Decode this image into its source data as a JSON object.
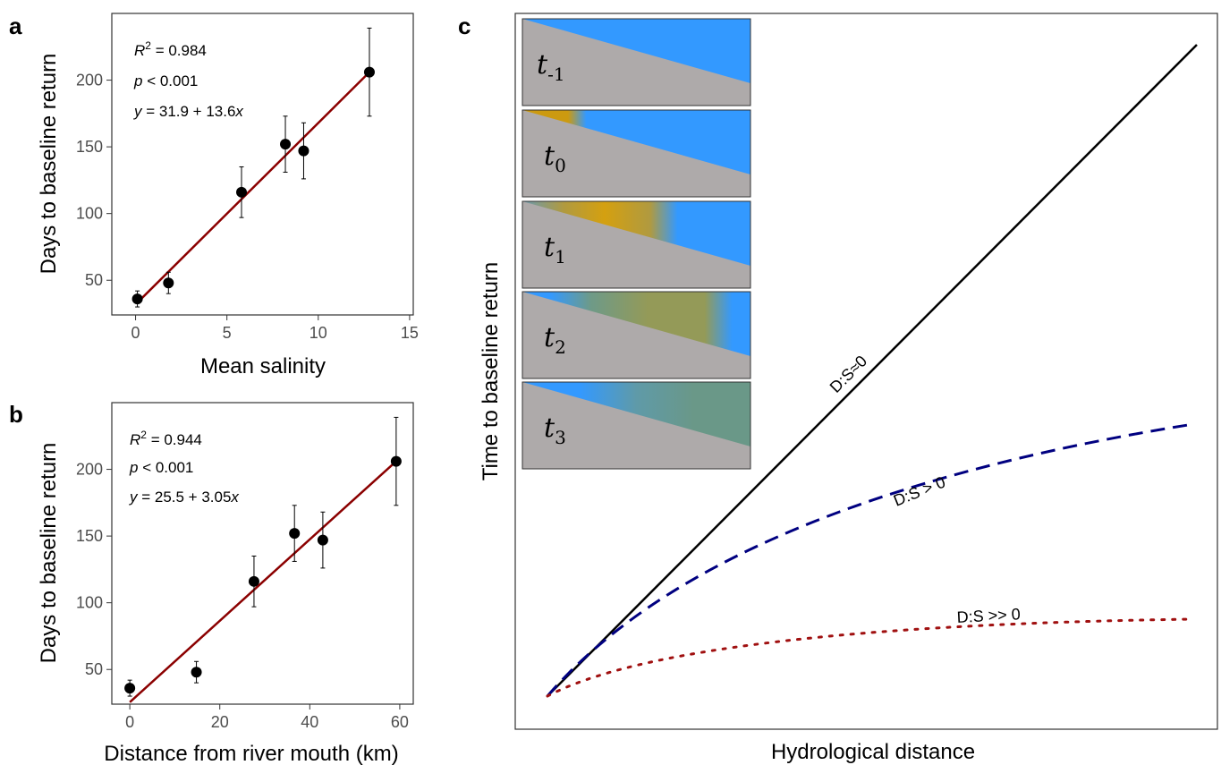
{
  "chart_data": [
    {
      "panel": "a",
      "type": "scatter",
      "xlabel": "Mean salinity",
      "ylabel": "Days to baseline return",
      "xlim": [
        -1.3,
        15.2
      ],
      "ylim": [
        24,
        250
      ],
      "xticks": [
        0,
        5,
        10,
        15
      ],
      "yticks": [
        50,
        100,
        150,
        200
      ],
      "points": [
        {
          "x": 0.1,
          "y": 36,
          "err": 6
        },
        {
          "x": 1.8,
          "y": 48,
          "err": 8
        },
        {
          "x": 5.8,
          "y": 116,
          "err": 19
        },
        {
          "x": 8.2,
          "y": 152,
          "err": 21
        },
        {
          "x": 9.2,
          "y": 147,
          "err": 21
        },
        {
          "x": 12.8,
          "y": 206,
          "err": 33
        }
      ],
      "fit": {
        "intercept": 31.9,
        "slope": 13.6,
        "x_range": [
          0.1,
          12.8
        ],
        "color": "#8b0000"
      },
      "annotations": {
        "r2_label": "R",
        "r2_sup": "2",
        "r2_value": " = 0.984",
        "p_label": "p",
        "p_value": " < 0.001",
        "eq_y": "y",
        "eq_mid": " = 31.9 + 13.6",
        "eq_x": "x"
      }
    },
    {
      "panel": "b",
      "type": "scatter",
      "xlabel": "Distance from river mouth (km)",
      "ylabel": "Days to baseline return",
      "xlim": [
        -4,
        63
      ],
      "ylim": [
        24,
        250
      ],
      "xticks": [
        0,
        20,
        40,
        60
      ],
      "yticks": [
        50,
        100,
        150,
        200
      ],
      "points": [
        {
          "x": 0,
          "y": 36,
          "err": 6
        },
        {
          "x": 14.8,
          "y": 48,
          "err": 8
        },
        {
          "x": 27.6,
          "y": 116,
          "err": 19
        },
        {
          "x": 36.6,
          "y": 152,
          "err": 21
        },
        {
          "x": 42.9,
          "y": 147,
          "err": 21
        },
        {
          "x": 59.2,
          "y": 206,
          "err": 33
        }
      ],
      "fit": {
        "intercept": 25.5,
        "slope": 3.05,
        "x_range": [
          0,
          59.2
        ],
        "color": "#8b0000"
      },
      "annotations": {
        "r2_label": "R",
        "r2_sup": "2",
        "r2_value": " = 0.944",
        "p_label": "p",
        "p_value": " < 0.001",
        "eq_y": "y",
        "eq_mid": " = 25.5 + 3.05",
        "eq_x": "x"
      }
    },
    {
      "panel": "c",
      "type": "line",
      "xlabel": "Hydrological distance",
      "ylabel": "Time to baseline return",
      "series": [
        {
          "name": "D:S≈0",
          "style": "solid",
          "color": "#000000"
        },
        {
          "name": "D:S > 0",
          "style": "dashed",
          "color": "#000080"
        },
        {
          "name": "D:S >> 0",
          "style": "dotted",
          "color": "#a01010"
        }
      ],
      "insets": [
        {
          "label": "t",
          "sub": "-1"
        },
        {
          "label": "t",
          "sub": "0"
        },
        {
          "label": "t",
          "sub": "1"
        },
        {
          "label": "t",
          "sub": "2"
        },
        {
          "label": "t",
          "sub": "3"
        }
      ]
    }
  ],
  "panel_letters": {
    "a": "a",
    "b": "b",
    "c": "c"
  },
  "colors": {
    "water": "#3399ff",
    "sediment": "#aeaaaa",
    "pulse": "#d4a017",
    "fit": "#8b0000"
  }
}
